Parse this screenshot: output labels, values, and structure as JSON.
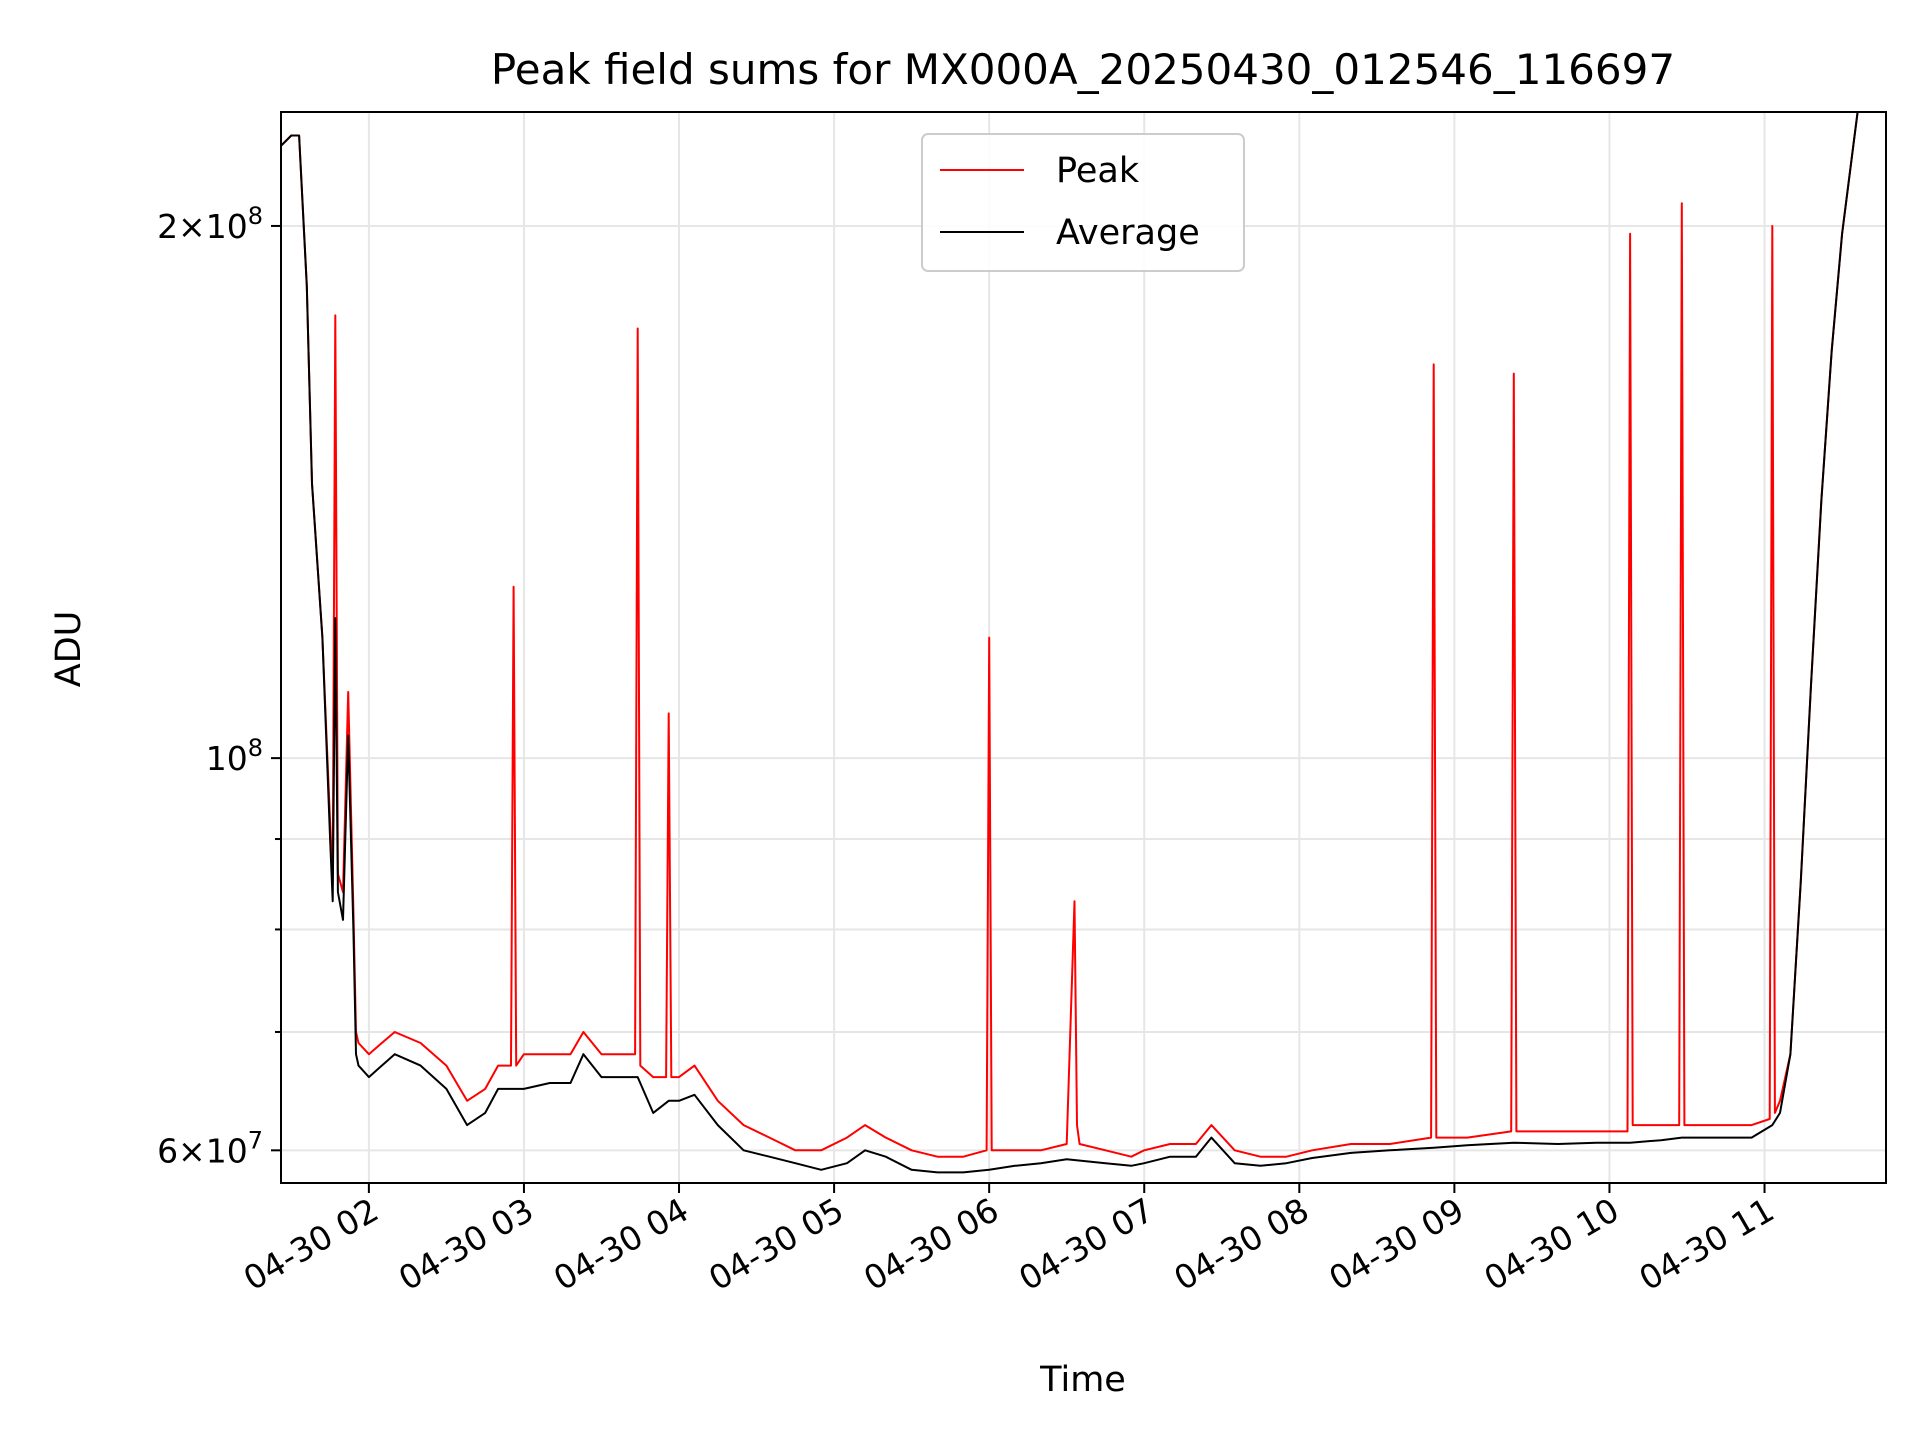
{
  "chart_data": {
    "type": "line",
    "title": "Peak field sums for MX000A_20250430_012546_116697",
    "xlabel": "Time",
    "ylabel": "ADU",
    "yscale": "log",
    "ylim": [
      57500000,
      232000000
    ],
    "xlim": [
      "2025-04-30 01:26",
      "2025-04-30 11:47"
    ],
    "grid": true,
    "legend": {
      "placement": "upper-center"
    },
    "x_ticks": [
      {
        "x": "2025-04-30 02:00",
        "label": "04-30 02"
      },
      {
        "x": "2025-04-30 03:00",
        "label": "04-30 03"
      },
      {
        "x": "2025-04-30 04:00",
        "label": "04-30 04"
      },
      {
        "x": "2025-04-30 05:00",
        "label": "04-30 05"
      },
      {
        "x": "2025-04-30 06:00",
        "label": "04-30 06"
      },
      {
        "x": "2025-04-30 07:00",
        "label": "04-30 07"
      },
      {
        "x": "2025-04-30 08:00",
        "label": "04-30 08"
      },
      {
        "x": "2025-04-30 09:00",
        "label": "04-30 09"
      },
      {
        "x": "2025-04-30 10:00",
        "label": "04-30 10"
      },
      {
        "x": "2025-04-30 11:00",
        "label": "04-30 11"
      }
    ],
    "y_ticks_major": [
      {
        "y": 60000000,
        "mantissa": "6",
        "exponent": "7"
      },
      {
        "y": 100000000,
        "mantissa": "",
        "exponent": "8"
      },
      {
        "y": 200000000,
        "mantissa": "2",
        "exponent": "8"
      }
    ],
    "y_ticks_minor": [
      70000000,
      80000000,
      90000000
    ],
    "series": [
      {
        "name": "Peak",
        "color": "#ff0000",
        "x": [
          "2025-04-30 01:26",
          "2025-04-30 01:30",
          "2025-04-30 01:33",
          "2025-04-30 01:36",
          "2025-04-30 01:38",
          "2025-04-30 01:42",
          "2025-04-30 01:45",
          "2025-04-30 01:46",
          "2025-04-30 01:47",
          "2025-04-30 01:48",
          "2025-04-30 01:50",
          "2025-04-30 01:52",
          "2025-04-30 01:54",
          "2025-04-30 01:55",
          "2025-04-30 01:56",
          "2025-04-30 02:00",
          "2025-04-30 02:05",
          "2025-04-30 02:10",
          "2025-04-30 02:20",
          "2025-04-30 02:30",
          "2025-04-30 02:38",
          "2025-04-30 02:45",
          "2025-04-30 02:50",
          "2025-04-30 02:55",
          "2025-04-30 02:56",
          "2025-04-30 02:57",
          "2025-04-30 03:00",
          "2025-04-30 03:10",
          "2025-04-30 03:18",
          "2025-04-30 03:23",
          "2025-04-30 03:30",
          "2025-04-30 03:38",
          "2025-04-30 03:43",
          "2025-04-30 03:44",
          "2025-04-30 03:45",
          "2025-04-30 03:50",
          "2025-04-30 03:55",
          "2025-04-30 03:56",
          "2025-04-30 03:57",
          "2025-04-30 04:00",
          "2025-04-30 04:06",
          "2025-04-30 04:15",
          "2025-04-30 04:25",
          "2025-04-30 04:35",
          "2025-04-30 04:45",
          "2025-04-30 04:55",
          "2025-04-30 05:05",
          "2025-04-30 05:12",
          "2025-04-30 05:20",
          "2025-04-30 05:30",
          "2025-04-30 05:40",
          "2025-04-30 05:50",
          "2025-04-30 05:59",
          "2025-04-30 06:00",
          "2025-04-30 06:01",
          "2025-04-30 06:10",
          "2025-04-30 06:20",
          "2025-04-30 06:30",
          "2025-04-30 06:33",
          "2025-04-30 06:34",
          "2025-04-30 06:35",
          "2025-04-30 06:45",
          "2025-04-30 06:55",
          "2025-04-30 07:00",
          "2025-04-30 07:10",
          "2025-04-30 07:20",
          "2025-04-30 07:26",
          "2025-04-30 07:35",
          "2025-04-30 07:45",
          "2025-04-30 07:55",
          "2025-04-30 08:05",
          "2025-04-30 08:20",
          "2025-04-30 08:35",
          "2025-04-30 08:51",
          "2025-04-30 08:52",
          "2025-04-30 08:53",
          "2025-04-30 09:05",
          "2025-04-30 09:22",
          "2025-04-30 09:23",
          "2025-04-30 09:24",
          "2025-04-30 09:40",
          "2025-04-30 09:55",
          "2025-04-30 10:07",
          "2025-04-30 10:08",
          "2025-04-30 10:09",
          "2025-04-30 10:20",
          "2025-04-30 10:27",
          "2025-04-30 10:28",
          "2025-04-30 10:29",
          "2025-04-30 10:40",
          "2025-04-30 10:55",
          "2025-04-30 11:02",
          "2025-04-30 11:03",
          "2025-04-30 11:04",
          "2025-04-30 11:06",
          "2025-04-30 11:10",
          "2025-04-30 11:14",
          "2025-04-30 11:18",
          "2025-04-30 11:22",
          "2025-04-30 11:26",
          "2025-04-30 11:30",
          "2025-04-30 11:34",
          "2025-04-30 11:36",
          "2025-04-30 11:39",
          "2025-04-30 11:47"
        ],
        "y": [
          222000000,
          225000000,
          225000000,
          185000000,
          143000000,
          117000000,
          92000000,
          85000000,
          178000000,
          86000000,
          84000000,
          109000000,
          82000000,
          70000000,
          69000000,
          68000000,
          69000000,
          70000000,
          69000000,
          67000000,
          64000000,
          65000000,
          67000000,
          67000000,
          125000000,
          67000000,
          68000000,
          68000000,
          68000000,
          70000000,
          68000000,
          68000000,
          68000000,
          175000000,
          67000000,
          66000000,
          66000000,
          106000000,
          66000000,
          66000000,
          67000000,
          64000000,
          62000000,
          61000000,
          60000000,
          60000000,
          61000000,
          62000000,
          61000000,
          60000000,
          59500000,
          59500000,
          60000000,
          117000000,
          60000000,
          60000000,
          60000000,
          60500000,
          83000000,
          62000000,
          60500000,
          60000000,
          59500000,
          60000000,
          60500000,
          60500000,
          62000000,
          60000000,
          59500000,
          59500000,
          60000000,
          60500000,
          60500000,
          61000000,
          167000000,
          61000000,
          61000000,
          61500000,
          165000000,
          61500000,
          61500000,
          61500000,
          61500000,
          198000000,
          62000000,
          62000000,
          62000000,
          206000000,
          62000000,
          62000000,
          62000000,
          62500000,
          200000000,
          63000000,
          64000000,
          68000000,
          85000000,
          110000000,
          140000000,
          170000000,
          198000000,
          220000000,
          232000000,
          232000000,
          232000000
        ]
      },
      {
        "name": "Average",
        "color": "#000000",
        "x": [
          "2025-04-30 01:26",
          "2025-04-30 01:30",
          "2025-04-30 01:33",
          "2025-04-30 01:36",
          "2025-04-30 01:38",
          "2025-04-30 01:42",
          "2025-04-30 01:45",
          "2025-04-30 01:46",
          "2025-04-30 01:47",
          "2025-04-30 01:48",
          "2025-04-30 01:50",
          "2025-04-30 01:52",
          "2025-04-30 01:54",
          "2025-04-30 01:55",
          "2025-04-30 01:56",
          "2025-04-30 02:00",
          "2025-04-30 02:05",
          "2025-04-30 02:10",
          "2025-04-30 02:20",
          "2025-04-30 02:30",
          "2025-04-30 02:38",
          "2025-04-30 02:45",
          "2025-04-30 02:50",
          "2025-04-30 03:00",
          "2025-04-30 03:10",
          "2025-04-30 03:18",
          "2025-04-30 03:23",
          "2025-04-30 03:30",
          "2025-04-30 03:38",
          "2025-04-30 03:44",
          "2025-04-30 03:50",
          "2025-04-30 03:56",
          "2025-04-30 04:00",
          "2025-04-30 04:06",
          "2025-04-30 04:15",
          "2025-04-30 04:25",
          "2025-04-30 04:35",
          "2025-04-30 04:45",
          "2025-04-30 04:55",
          "2025-04-30 05:05",
          "2025-04-30 05:12",
          "2025-04-30 05:20",
          "2025-04-30 05:30",
          "2025-04-30 05:40",
          "2025-04-30 05:50",
          "2025-04-30 06:00",
          "2025-04-30 06:10",
          "2025-04-30 06:20",
          "2025-04-30 06:30",
          "2025-04-30 06:45",
          "2025-04-30 06:55",
          "2025-04-30 07:00",
          "2025-04-30 07:10",
          "2025-04-30 07:20",
          "2025-04-30 07:26",
          "2025-04-30 07:35",
          "2025-04-30 07:45",
          "2025-04-30 07:55",
          "2025-04-30 08:05",
          "2025-04-30 08:20",
          "2025-04-30 08:35",
          "2025-04-30 08:52",
          "2025-04-30 09:05",
          "2025-04-30 09:23",
          "2025-04-30 09:40",
          "2025-04-30 09:55",
          "2025-04-30 10:08",
          "2025-04-30 10:20",
          "2025-04-30 10:28",
          "2025-04-30 10:40",
          "2025-04-30 10:55",
          "2025-04-30 11:03",
          "2025-04-30 11:06",
          "2025-04-30 11:10",
          "2025-04-30 11:14",
          "2025-04-30 11:18",
          "2025-04-30 11:22",
          "2025-04-30 11:26",
          "2025-04-30 11:30",
          "2025-04-30 11:34",
          "2025-04-30 11:36",
          "2025-04-30 11:39",
          "2025-04-30 11:47"
        ],
        "y": [
          222000000,
          225000000,
          225000000,
          185000000,
          143000000,
          117000000,
          90000000,
          83000000,
          120000000,
          84000000,
          81000000,
          103000000,
          80000000,
          68000000,
          67000000,
          66000000,
          67000000,
          68000000,
          67000000,
          65000000,
          62000000,
          63000000,
          65000000,
          65000000,
          65500000,
          65500000,
          68000000,
          66000000,
          66000000,
          66000000,
          63000000,
          64000000,
          64000000,
          64500000,
          62000000,
          60000000,
          59500000,
          59000000,
          58500000,
          59000000,
          60000000,
          59500000,
          58500000,
          58300000,
          58300000,
          58500000,
          58800000,
          59000000,
          59300000,
          59000000,
          58800000,
          59000000,
          59500000,
          59500000,
          61000000,
          59000000,
          58800000,
          59000000,
          59400000,
          59800000,
          60000000,
          60200000,
          60400000,
          60600000,
          60500000,
          60600000,
          60600000,
          60800000,
          61000000,
          61000000,
          61000000,
          62000000,
          63000000,
          68000000,
          85000000,
          110000000,
          140000000,
          170000000,
          198000000,
          220000000,
          232000000,
          232000000,
          232000000
        ]
      }
    ]
  }
}
